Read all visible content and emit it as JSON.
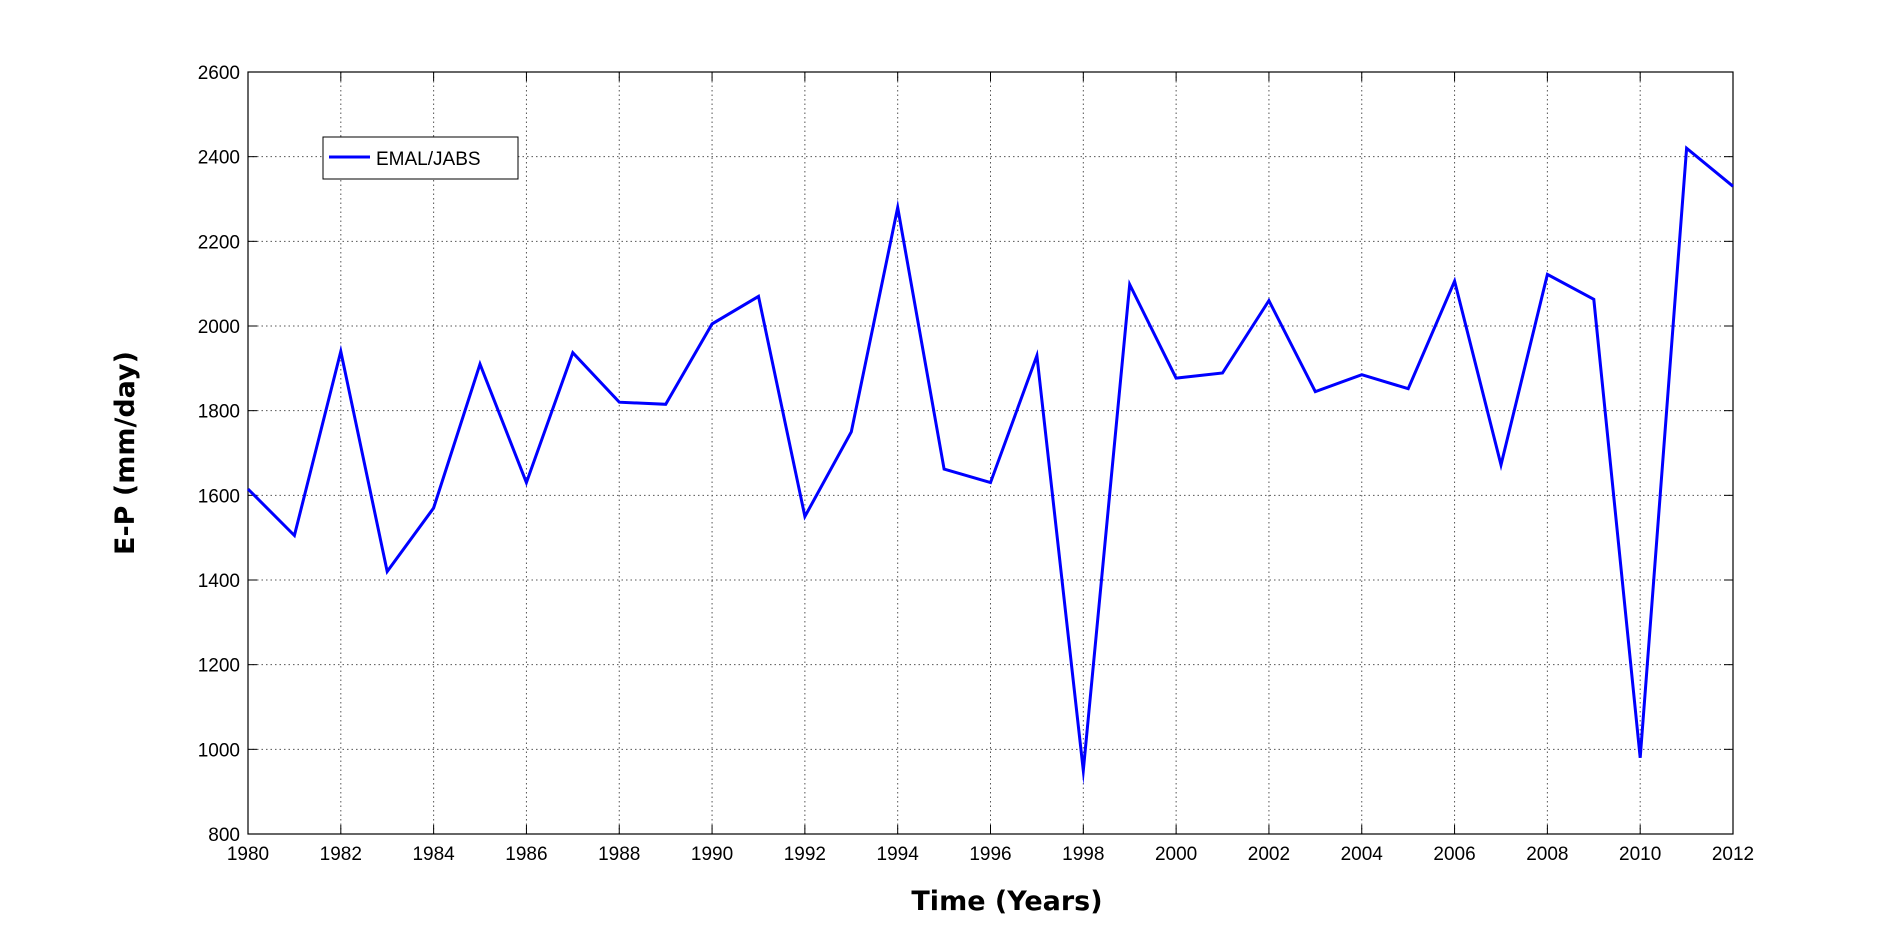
{
  "chart_data": {
    "type": "line",
    "xlabel": "Time (Years)",
    "ylabel": "E-P (mm/day)",
    "xlim": [
      1980,
      2012
    ],
    "ylim": [
      800,
      2600
    ],
    "xticks": [
      "1980",
      "1982",
      "1984",
      "1986",
      "1988",
      "1990",
      "1992",
      "1994",
      "1996",
      "1998",
      "2000",
      "2002",
      "2004",
      "2006",
      "2008",
      "2010",
      "2012"
    ],
    "yticks": [
      "800",
      "1000",
      "1200",
      "1400",
      "1600",
      "1800",
      "2000",
      "2200",
      "2400",
      "2600"
    ],
    "grid": true,
    "legend_position": "top-left",
    "series": [
      {
        "name": "EMAL/JABS",
        "color": "#0000ff",
        "x": [
          1980,
          1981,
          1982,
          1983,
          1984,
          1985,
          1986,
          1987,
          1988,
          1989,
          1990,
          1991,
          1992,
          1993,
          1994,
          1995,
          1996,
          1997,
          1998,
          1999,
          2000,
          2001,
          2002,
          2003,
          2004,
          2005,
          2006,
          2007,
          2008,
          2009,
          2010,
          2011,
          2012
        ],
        "y": [
          1615,
          1505,
          1940,
          1420,
          1570,
          1910,
          1630,
          1937,
          1820,
          1815,
          2005,
          2070,
          1550,
          1750,
          2280,
          1662,
          1630,
          1930,
          950,
          2098,
          1877,
          1889,
          2060,
          1845,
          1885,
          1852,
          2106,
          1672,
          2122,
          2063,
          980,
          2420,
          2330
        ]
      }
    ]
  }
}
